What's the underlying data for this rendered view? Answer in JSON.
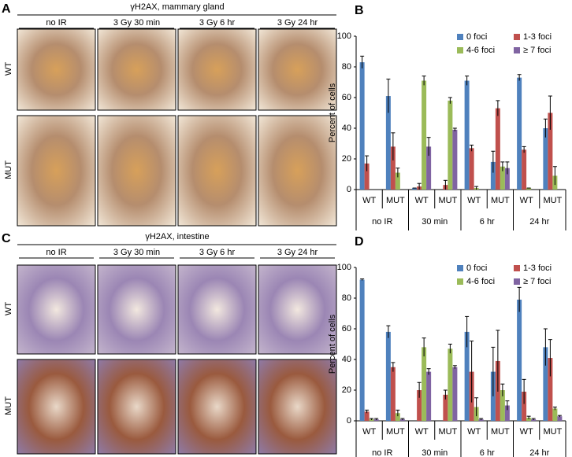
{
  "image_panels": [
    {
      "label": "A",
      "title": "γH2AX, mammary gland",
      "columns": [
        "no IR",
        "3 Gy 30 min",
        "3 Gy 6 hr",
        "3 Gy 24 hr"
      ],
      "rows": [
        "WT",
        "MUT"
      ]
    },
    {
      "label": "C",
      "title": "γH2AX, intestine",
      "columns": [
        "no IR",
        "3 Gy 30 min",
        "3 Gy 6 hr",
        "3 Gy 24 hr"
      ],
      "rows": [
        "WT",
        "MUT"
      ]
    }
  ],
  "chart_data": [
    {
      "type": "bar",
      "label": "B",
      "y_label": "Percent of cells",
      "categories": [
        "WT",
        "MUT",
        "WT",
        "MUT",
        "WT",
        "MUT",
        "WT",
        "MUT"
      ],
      "groups": [
        "no IR",
        "30 min",
        "6 hr",
        "24 hr"
      ],
      "ylim": [
        0,
        100
      ],
      "yticks": [
        0,
        20,
        40,
        60,
        80,
        100
      ],
      "legend": "top-right",
      "series": [
        {
          "name": "0 foci",
          "color": "#4f81bd",
          "values": [
            83,
            61,
            1,
            0,
            71,
            18,
            73,
            40
          ],
          "errors": [
            4,
            11,
            0,
            0,
            3,
            7,
            2,
            6
          ]
        },
        {
          "name": "1-3 foci",
          "color": "#c0504d",
          "values": [
            17,
            28,
            2,
            3,
            27,
            53,
            26,
            50
          ],
          "errors": [
            5,
            9,
            2,
            3,
            2,
            5,
            2,
            11
          ]
        },
        {
          "name": "4-6 foci",
          "color": "#9bbb59",
          "values": [
            0,
            11,
            71,
            58,
            1,
            15,
            1,
            9
          ],
          "errors": [
            0,
            3,
            3,
            2,
            1,
            3,
            0,
            6
          ]
        },
        {
          "name": "≥ 7 foci",
          "color": "#8064a2",
          "values": [
            0,
            0,
            28,
            39,
            0,
            14,
            0,
            0
          ],
          "errors": [
            0,
            0,
            6,
            1,
            0,
            4,
            0,
            0
          ]
        }
      ]
    },
    {
      "type": "bar",
      "label": "D",
      "y_label": "Percent of cells",
      "categories": [
        "WT",
        "MUT",
        "WT",
        "MUT",
        "WT",
        "MUT",
        "WT",
        "MUT"
      ],
      "groups": [
        "no IR",
        "30 min",
        "6 hr",
        "24 hr"
      ],
      "ylim": [
        0,
        100
      ],
      "yticks": [
        0,
        20,
        40,
        60,
        80,
        100
      ],
      "legend": "top-right",
      "series": [
        {
          "name": "0 foci",
          "color": "#4f81bd",
          "values": [
            92,
            58,
            0,
            0,
            58,
            32,
            79,
            48
          ],
          "errors": [
            0.5,
            4,
            0,
            0,
            10,
            16,
            8,
            12
          ]
        },
        {
          "name": "1-3 foci",
          "color": "#c0504d",
          "values": [
            6,
            35,
            20,
            17,
            32,
            39,
            19,
            41
          ],
          "errors": [
            1,
            3,
            5,
            3,
            20,
            20,
            8,
            12
          ]
        },
        {
          "name": "4-6 foci",
          "color": "#9bbb59",
          "values": [
            1,
            5,
            48,
            47,
            9,
            20,
            2,
            8
          ],
          "errors": [
            0.5,
            2,
            6,
            3,
            6,
            4,
            1,
            1
          ]
        },
        {
          "name": "≥ 7 foci",
          "color": "#8064a2",
          "values": [
            1,
            1,
            32,
            35,
            1,
            10,
            1,
            3
          ],
          "errors": [
            0.5,
            0.5,
            2,
            1,
            0.5,
            3,
            0.5,
            0.5
          ]
        }
      ]
    }
  ]
}
